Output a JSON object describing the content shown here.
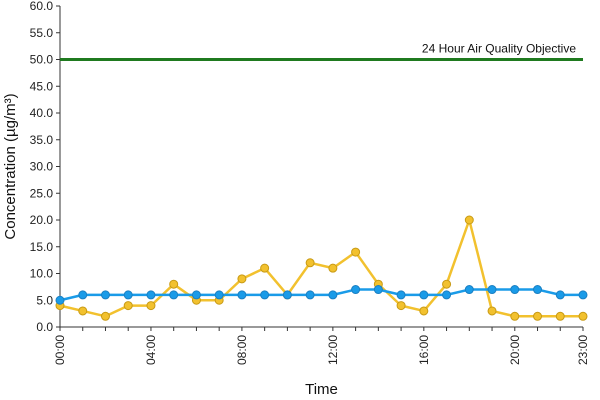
{
  "chart_data": {
    "type": "line",
    "xlabel": "Time",
    "ylabel": "Concentration (µg/m³)",
    "ylim": [
      0,
      60
    ],
    "yticks": [
      "0.0",
      "5.0",
      "10.0",
      "15.0",
      "20.0",
      "25.0",
      "30.0",
      "35.0",
      "40.0",
      "45.0",
      "50.0",
      "55.0",
      "60.0"
    ],
    "x": [
      "00:00",
      "01:00",
      "02:00",
      "03:00",
      "04:00",
      "05:00",
      "06:00",
      "07:00",
      "08:00",
      "09:00",
      "10:00",
      "11:00",
      "12:00",
      "13:00",
      "14:00",
      "15:00",
      "16:00",
      "17:00",
      "18:00",
      "19:00",
      "20:00",
      "21:00",
      "22:00",
      "23:00"
    ],
    "xtick_labels": [
      "00:00",
      "04:00",
      "08:00",
      "12:00",
      "16:00",
      "20:00",
      "23:00"
    ],
    "grid": false,
    "series": [
      {
        "color": "#f2c12e",
        "values": [
          4,
          3,
          2,
          4,
          4,
          8,
          5,
          5,
          9,
          11,
          6,
          12,
          11,
          14,
          8,
          4,
          3,
          8,
          20,
          3,
          2,
          2,
          2,
          2
        ]
      },
      {
        "color": "#1a9be8",
        "values": [
          5,
          6,
          6,
          6,
          6,
          6,
          6,
          6,
          6,
          6,
          6,
          6,
          6,
          7,
          7,
          6,
          6,
          6,
          7,
          7,
          7,
          7,
          6,
          6
        ]
      }
    ],
    "reference_line": {
      "value": 50,
      "label": "24 Hour Air Quality Objective",
      "color": "#1f7a1f"
    }
  }
}
